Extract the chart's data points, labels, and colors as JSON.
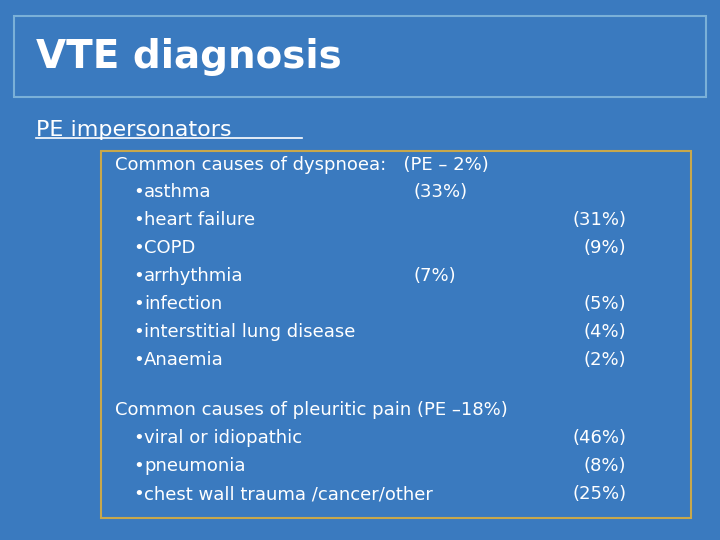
{
  "title": "VTE diagnosis",
  "subtitle": "PE impersonators",
  "bg_color": "#3a7abf",
  "title_color": "#ffffff",
  "subtitle_color": "#ffffff",
  "box_bg": "#3a7abf",
  "box_border": "#c8a84b",
  "text_color": "#ffffff",
  "title_fontsize": 28,
  "subtitle_fontsize": 16,
  "content_fontsize": 13,
  "section1_header": "Common causes of dyspnoea:   (PE – 2%)",
  "section1_items": [
    [
      "asthma",
      "(33%)",
      ""
    ],
    [
      "heart failure",
      "",
      "(31%)"
    ],
    [
      "COPD",
      "",
      "(9%)"
    ],
    [
      "arrhythmia",
      "(7%)",
      ""
    ],
    [
      "infection",
      "",
      "(5%)"
    ],
    [
      "interstitial lung disease",
      "",
      "(4%)"
    ],
    [
      "Anaemia",
      "",
      "(2%)"
    ]
  ],
  "section2_header": "Common causes of pleuritic pain (PE –18%)",
  "section2_items": [
    [
      "viral or idiopathic",
      "",
      "(46%)"
    ],
    [
      "pneumonia",
      "",
      "(8%)"
    ],
    [
      "chest wall trauma /cancer/other",
      "",
      "(25%)"
    ]
  ]
}
